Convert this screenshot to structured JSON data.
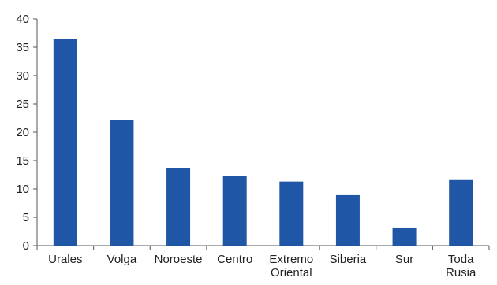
{
  "chart_data": {
    "type": "bar",
    "categories": [
      [
        "Urales"
      ],
      [
        "Volga"
      ],
      [
        "Noroeste"
      ],
      [
        "Centro"
      ],
      [
        "Extremo",
        "Oriental"
      ],
      [
        "Siberia"
      ],
      [
        "Sur"
      ],
      [
        "Toda",
        "Rusia"
      ]
    ],
    "values": [
      36.5,
      22.2,
      13.7,
      12.3,
      11.3,
      8.9,
      3.2,
      11.7
    ],
    "yticks": [
      "0",
      "5",
      "10",
      "15",
      "20",
      "25",
      "30",
      "35",
      "40"
    ],
    "ylim": [
      0,
      40
    ],
    "grid": false,
    "bar_color": "#1f56a5",
    "axis_color": "#555555"
  }
}
